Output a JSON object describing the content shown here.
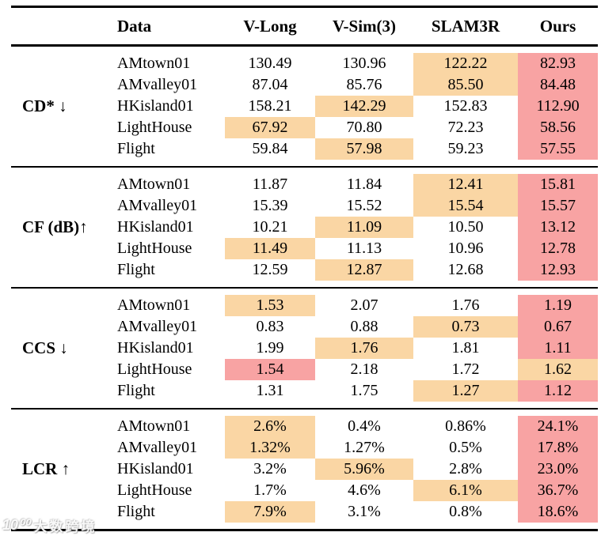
{
  "table": {
    "header": {
      "data": "Data",
      "methods": [
        "V-Long",
        "V-Sim(3)",
        "SLAM3R",
        "Ours"
      ]
    },
    "sections": [
      {
        "id": "cd",
        "label": "CD* ↓",
        "rows": [
          {
            "dataset": "AMtown01",
            "values": [
              "130.49",
              "130.96",
              "122.22",
              "82.93"
            ],
            "hl": [
              "",
              "",
              "orange",
              "red"
            ]
          },
          {
            "dataset": "AMvalley01",
            "values": [
              "87.04",
              "85.76",
              "85.50",
              "84.48"
            ],
            "hl": [
              "",
              "",
              "orange",
              "red"
            ]
          },
          {
            "dataset": "HKisland01",
            "values": [
              "158.21",
              "142.29",
              "152.83",
              "112.90"
            ],
            "hl": [
              "",
              "orange",
              "",
              "red"
            ]
          },
          {
            "dataset": "LightHouse",
            "values": [
              "67.92",
              "70.80",
              "72.23",
              "58.56"
            ],
            "hl": [
              "orange",
              "",
              "",
              "red"
            ]
          },
          {
            "dataset": "Flight",
            "values": [
              "59.84",
              "57.98",
              "59.23",
              "57.55"
            ],
            "hl": [
              "",
              "orange",
              "",
              "red"
            ]
          }
        ]
      },
      {
        "id": "cf",
        "label": "CF (dB)↑",
        "rows": [
          {
            "dataset": "AMtown01",
            "values": [
              "11.87",
              "11.84",
              "12.41",
              "15.81"
            ],
            "hl": [
              "",
              "",
              "orange",
              "red"
            ]
          },
          {
            "dataset": "AMvalley01",
            "values": [
              "15.39",
              "15.52",
              "15.54",
              "15.57"
            ],
            "hl": [
              "",
              "",
              "orange",
              "red"
            ]
          },
          {
            "dataset": "HKisland01",
            "values": [
              "10.21",
              "11.09",
              "10.50",
              "13.12"
            ],
            "hl": [
              "",
              "orange",
              "",
              "red"
            ]
          },
          {
            "dataset": "LightHouse",
            "values": [
              "11.49",
              "11.13",
              "10.96",
              "12.78"
            ],
            "hl": [
              "orange",
              "",
              "",
              "red"
            ]
          },
          {
            "dataset": "Flight",
            "values": [
              "12.59",
              "12.87",
              "12.68",
              "12.93"
            ],
            "hl": [
              "",
              "orange",
              "",
              "red"
            ]
          }
        ]
      },
      {
        "id": "ccs",
        "label": "CCS ↓",
        "rows": [
          {
            "dataset": "AMtown01",
            "values": [
              "1.53",
              "2.07",
              "1.76",
              "1.19"
            ],
            "hl": [
              "orange",
              "",
              "",
              "red"
            ]
          },
          {
            "dataset": "AMvalley01",
            "values": [
              "0.83",
              "0.88",
              "0.73",
              "0.67"
            ],
            "hl": [
              "",
              "",
              "orange",
              "red"
            ]
          },
          {
            "dataset": "HKisland01",
            "values": [
              "1.99",
              "1.76",
              "1.81",
              "1.11"
            ],
            "hl": [
              "",
              "orange",
              "",
              "red"
            ]
          },
          {
            "dataset": "LightHouse",
            "values": [
              "1.54",
              "2.18",
              "1.72",
              "1.62"
            ],
            "hl": [
              "red",
              "",
              "",
              "orange"
            ]
          },
          {
            "dataset": "Flight",
            "values": [
              "1.31",
              "1.75",
              "1.27",
              "1.12"
            ],
            "hl": [
              "",
              "",
              "orange",
              "red"
            ]
          }
        ]
      },
      {
        "id": "lcr",
        "label": "LCR ↑",
        "rows": [
          {
            "dataset": "AMtown01",
            "values": [
              "2.6%",
              "0.4%",
              "0.86%",
              "24.1%"
            ],
            "hl": [
              "orange",
              "",
              "",
              "red"
            ]
          },
          {
            "dataset": "AMvalley01",
            "values": [
              "1.32%",
              "1.27%",
              "0.5%",
              "17.8%"
            ],
            "hl": [
              "orange",
              "",
              "",
              "red"
            ]
          },
          {
            "dataset": "HKisland01",
            "values": [
              "3.2%",
              "5.96%",
              "2.8%",
              "23.0%"
            ],
            "hl": [
              "",
              "orange",
              "",
              "red"
            ]
          },
          {
            "dataset": "LightHouse",
            "values": [
              "1.7%",
              "4.6%",
              "6.1%",
              "36.7%"
            ],
            "hl": [
              "",
              "",
              "orange",
              "red"
            ]
          },
          {
            "dataset": "Flight",
            "values": [
              "7.9%",
              "3.1%",
              "0.8%",
              "18.6%"
            ],
            "hl": [
              "orange",
              "",
              "",
              "red"
            ]
          }
        ]
      }
    ]
  },
  "colors": {
    "orange": "#FAD6A4",
    "red": "#F8A3A3",
    "rule": "#000000",
    "text": "#000000",
    "background": "#FFFFFF"
  },
  "watermark": {
    "logo": "10⁰⁰",
    "text": "大数跨境"
  }
}
